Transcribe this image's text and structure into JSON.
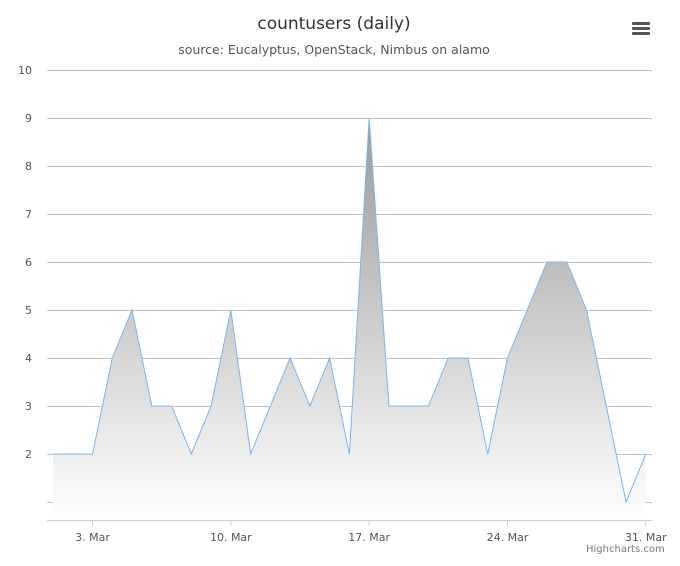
{
  "chart_data": {
    "type": "area",
    "title": "countusers (daily)",
    "subtitle": "source: Eucalyptus, OpenStack, Nimbus on alamo",
    "x": [
      "2014-03-01",
      "2014-03-02",
      "2014-03-03",
      "2014-03-04",
      "2014-03-05",
      "2014-03-06",
      "2014-03-07",
      "2014-03-08",
      "2014-03-09",
      "2014-03-10",
      "2014-03-11",
      "2014-03-12",
      "2014-03-13",
      "2014-03-14",
      "2014-03-15",
      "2014-03-16",
      "2014-03-17",
      "2014-03-18",
      "2014-03-19",
      "2014-03-20",
      "2014-03-21",
      "2014-03-22",
      "2014-03-23",
      "2014-03-24",
      "2014-03-25",
      "2014-03-26",
      "2014-03-27",
      "2014-03-28",
      "2014-03-29",
      "2014-03-30",
      "2014-03-31"
    ],
    "series": [
      {
        "values": [
          2,
          2,
          2,
          4,
          5,
          3,
          3,
          2,
          3,
          5,
          2,
          3,
          4,
          3,
          4,
          2,
          9,
          3,
          3,
          3,
          4,
          4,
          2,
          4,
          5,
          6,
          6,
          5,
          3,
          1,
          2
        ],
        "color": "#7cb5ec"
      }
    ],
    "x_tick_labels": [
      "3. Mar",
      "10. Mar",
      "17. Mar",
      "24. Mar",
      "31. Mar"
    ],
    "y_tick_labels": [
      "2",
      "3",
      "4",
      "5",
      "6",
      "7",
      "8",
      "9",
      "10"
    ],
    "ylim": [
      1,
      10
    ],
    "grid": true,
    "legend": "none",
    "fill_gradient": [
      "#999999",
      "#ffffff"
    ]
  },
  "credits": "Highcharts.com",
  "icons": {
    "menu": "hamburger-menu-icon"
  }
}
